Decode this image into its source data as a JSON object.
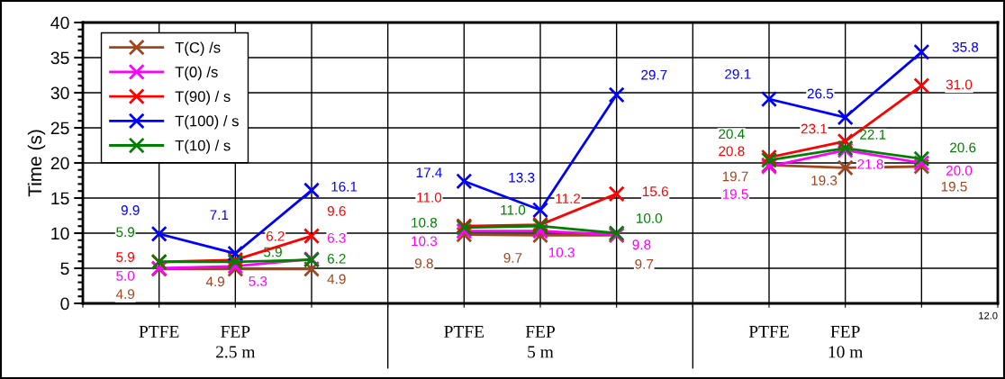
{
  "chart_data": {
    "type": "line",
    "ylabel": "Time (s)",
    "categories": [
      null,
      "PTFE",
      "FEP",
      null,
      null,
      "PTFE",
      "FEP",
      null,
      null,
      "PTFE",
      "FEP",
      null,
      null
    ],
    "series": [
      {
        "name": "T(C) /s",
        "color": "#a0461e",
        "values": [
          null,
          4.9,
          4.9,
          4.9,
          null,
          9.8,
          9.7,
          9.7,
          null,
          19.7,
          19.3,
          19.5,
          null
        ],
        "value_labels": [
          null,
          "4.9",
          "4.9",
          "4.9",
          null,
          "9.8",
          "9.7",
          "9.7",
          null,
          "19.7",
          "19.3",
          "19.5",
          null
        ]
      },
      {
        "name": "T(0) /s",
        "color": "#ff00ff",
        "values": [
          null,
          5.0,
          5.3,
          6.3,
          null,
          10.3,
          10.3,
          9.8,
          null,
          19.5,
          21.8,
          20.0,
          null
        ],
        "value_labels": [
          null,
          "5.0",
          "5.3",
          "6.3",
          null,
          "10.3",
          "10.3",
          "9.8",
          null,
          "19.5",
          "21.8",
          "20.0",
          null
        ]
      },
      {
        "name": "T(90) / s",
        "color": "#ff0000",
        "values": [
          null,
          5.9,
          6.2,
          9.6,
          null,
          11.0,
          11.2,
          15.6,
          null,
          20.8,
          23.1,
          31.0,
          null
        ],
        "value_labels": [
          null,
          "5.9",
          "6.2",
          "9.6",
          null,
          "11.0",
          "11.2",
          "15.6",
          null,
          "20.8",
          "23.1",
          "31.0",
          null
        ]
      },
      {
        "name": "T(100) / s",
        "color": "#0000ff",
        "values": [
          null,
          9.9,
          7.1,
          16.1,
          null,
          17.4,
          13.3,
          29.7,
          null,
          29.1,
          26.5,
          35.8,
          null
        ],
        "value_labels": [
          null,
          "9.9",
          "7.1",
          "16.1",
          null,
          "17.4",
          "13.3",
          "29.7",
          null,
          "29.1",
          "26.5",
          "35.8",
          null
        ]
      },
      {
        "name": "T(10) / s",
        "color": "#008000",
        "values": [
          null,
          5.9,
          5.9,
          6.2,
          null,
          10.8,
          11.0,
          10.0,
          null,
          20.4,
          22.1,
          20.6,
          null
        ],
        "value_labels": [
          null,
          "5.9",
          "5.9",
          "6.2",
          null,
          "10.8",
          "11.0",
          "10.0",
          null,
          "20.4",
          "22.1",
          "20.6",
          null
        ]
      }
    ],
    "ylim": [
      0,
      40
    ],
    "yticks": [
      0,
      5,
      10,
      15,
      20,
      25,
      30,
      35,
      40
    ],
    "grid": true,
    "legend": "top left",
    "marker": "cross",
    "line_style": "solid",
    "annotations": [
      "2.5 m",
      "5 m",
      "10 m",
      "12.0"
    ]
  }
}
